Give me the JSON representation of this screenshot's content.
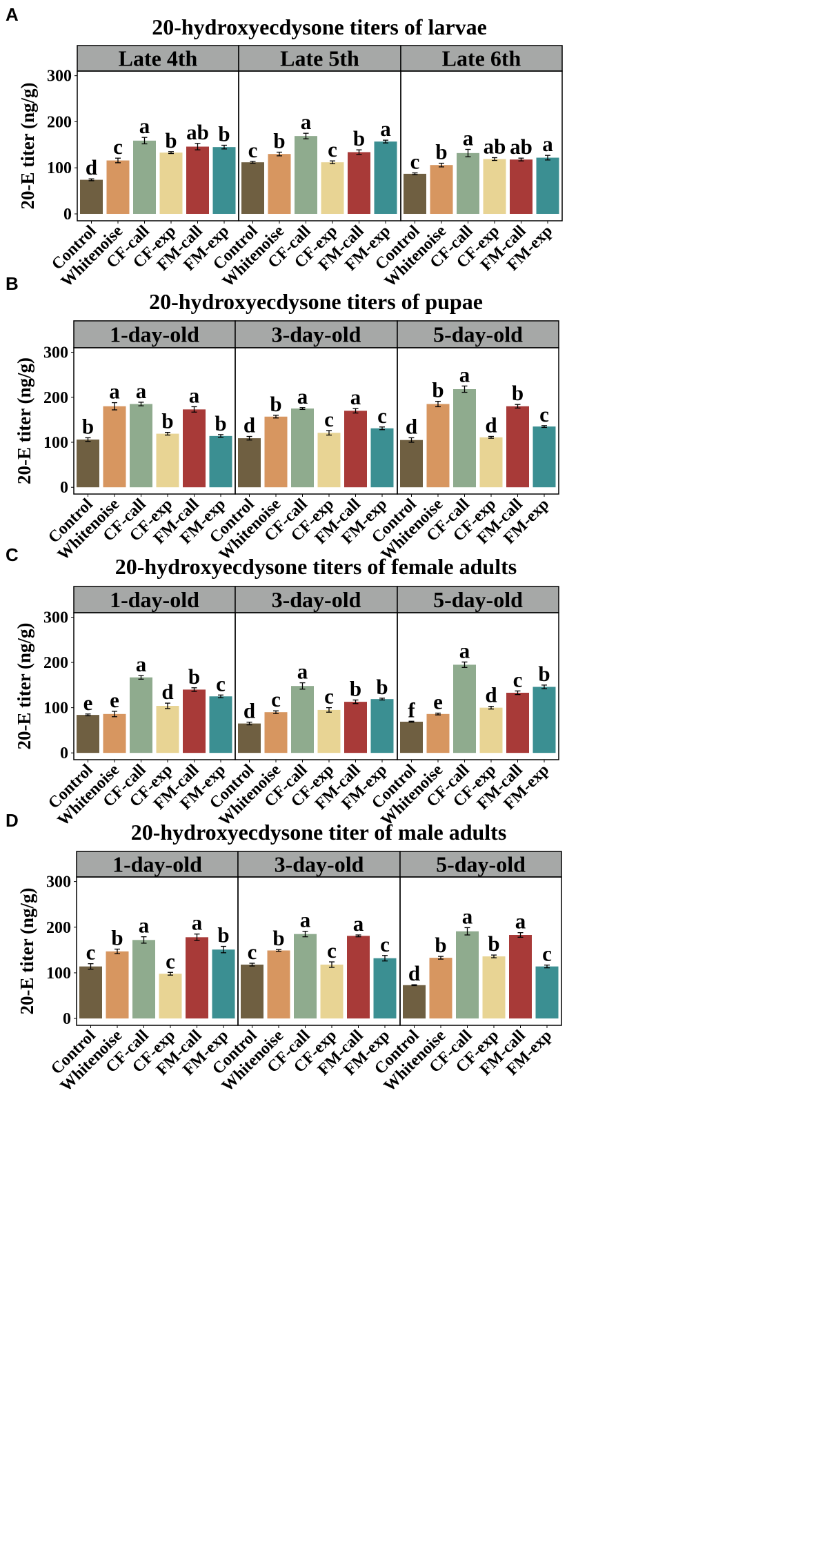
{
  "figure": {
    "group_colors": {
      "Control": "#6f5f41",
      "Whitenoise": "#d79660",
      "CF-call": "#8fab8e",
      "CF-exp": "#e8d494",
      "FM-call": "#a83a38",
      "FM-exp": "#3b8f92"
    },
    "strip_color": "#a6a8a7"
  },
  "chart_data": [
    {
      "type": "bar",
      "panel_letter": "A",
      "title": "20-hydroxyecdysone titers of larvae",
      "ylabel": "20-E titer (ng/g)",
      "ylim": [
        -15,
        310
      ],
      "yticks": [
        0,
        100,
        200,
        300
      ],
      "categories": [
        "Control",
        "Whitenoise",
        "CF-call",
        "CF-exp",
        "FM-call",
        "FM-exp"
      ],
      "facets": [
        {
          "label": "Late 4th",
          "values": [
            74,
            116,
            159,
            133,
            146,
            145
          ],
          "errors": [
            2,
            5,
            7,
            2,
            7,
            4
          ],
          "letters": [
            "d",
            "c",
            "a",
            "b",
            "ab",
            "b"
          ]
        },
        {
          "label": "Late 5th",
          "values": [
            112,
            130,
            169,
            112,
            134,
            157
          ],
          "errors": [
            2,
            4,
            6,
            3,
            5,
            3
          ],
          "letters": [
            "c",
            "b",
            "a",
            "c",
            "b",
            "a"
          ]
        },
        {
          "label": "Late 6th",
          "values": [
            87,
            106,
            132,
            119,
            118,
            122
          ],
          "errors": [
            2,
            4,
            8,
            3,
            3,
            5
          ],
          "letters": [
            "c",
            "b",
            "a",
            "ab",
            "ab",
            "a"
          ]
        }
      ]
    },
    {
      "type": "bar",
      "panel_letter": "B",
      "title": "20-hydroxyecdysone titers of pupae",
      "ylabel": "20-E titer (ng/g)",
      "ylim": [
        -15,
        310
      ],
      "yticks": [
        0,
        100,
        200,
        300
      ],
      "categories": [
        "Control",
        "Whitenoise",
        "CF-call",
        "CF-exp",
        "FM-call",
        "FM-exp"
      ],
      "facets": [
        {
          "label": "1-day-old",
          "values": [
            106,
            180,
            185,
            119,
            173,
            114
          ],
          "errors": [
            4,
            8,
            4,
            3,
            6,
            3
          ],
          "letters": [
            "b",
            "a",
            "a",
            "b",
            "a",
            "b"
          ]
        },
        {
          "label": "3-day-old",
          "values": [
            109,
            157,
            175,
            121,
            170,
            131
          ],
          "errors": [
            4,
            3,
            2,
            5,
            5,
            3
          ],
          "letters": [
            "d",
            "b",
            "a",
            "c",
            "a",
            "c"
          ]
        },
        {
          "label": "5-day-old",
          "values": [
            105,
            185,
            218,
            111,
            180,
            135
          ],
          "errors": [
            5,
            6,
            7,
            2,
            4,
            2
          ],
          "letters": [
            "d",
            "b",
            "a",
            "d",
            "b",
            "c"
          ]
        }
      ]
    },
    {
      "type": "bar",
      "panel_letter": "C",
      "title": "20-hydroxyecdysone titers of female adults",
      "ylabel": "20-E titer (ng/g)",
      "ylim": [
        -15,
        310
      ],
      "yticks": [
        0,
        100,
        200,
        300
      ],
      "categories": [
        "Control",
        "Whitenoise",
        "CF-call",
        "CF-exp",
        "FM-call",
        "FM-exp"
      ],
      "facets": [
        {
          "label": "1-day-old",
          "values": [
            84,
            86,
            167,
            104,
            140,
            125
          ],
          "errors": [
            2,
            6,
            4,
            6,
            4,
            3
          ],
          "letters": [
            "e",
            "e",
            "a",
            "d",
            "b",
            "c"
          ]
        },
        {
          "label": "3-day-old",
          "values": [
            65,
            90,
            148,
            95,
            113,
            119
          ],
          "errors": [
            3,
            3,
            7,
            5,
            4,
            2
          ],
          "letters": [
            "d",
            "c",
            "a",
            "c",
            "b",
            "b"
          ]
        },
        {
          "label": "5-day-old",
          "values": [
            69,
            86,
            195,
            100,
            133,
            146
          ],
          "errors": [
            1,
            2,
            6,
            3,
            4,
            4
          ],
          "letters": [
            "f",
            "e",
            "a",
            "d",
            "c",
            "b"
          ]
        }
      ]
    },
    {
      "type": "bar",
      "panel_letter": "D",
      "title": "20-hydroxyecdysone titer of male adults",
      "ylabel": "20-E titer (ng/g)",
      "ylim": [
        -15,
        310
      ],
      "yticks": [
        0,
        100,
        200,
        300
      ],
      "categories": [
        "Control",
        "Whitenoise",
        "CF-call",
        "CF-exp",
        "FM-call",
        "FM-exp"
      ],
      "facets": [
        {
          "label": "1-day-old",
          "values": [
            114,
            147,
            172,
            98,
            178,
            151
          ],
          "errors": [
            6,
            5,
            7,
            3,
            7,
            7
          ],
          "letters": [
            "c",
            "b",
            "a",
            "c",
            "a",
            "b"
          ]
        },
        {
          "label": "3-day-old",
          "values": [
            118,
            149,
            185,
            118,
            181,
            132
          ],
          "errors": [
            3,
            2,
            6,
            6,
            2,
            6
          ],
          "letters": [
            "c",
            "b",
            "a",
            "c",
            "a",
            "c"
          ]
        },
        {
          "label": "5-day-old",
          "values": [
            73,
            133,
            191,
            136,
            183,
            114
          ],
          "errors": [
            1,
            3,
            8,
            3,
            5,
            3
          ],
          "letters": [
            "d",
            "b",
            "a",
            "b",
            "a",
            "c"
          ]
        }
      ]
    }
  ]
}
